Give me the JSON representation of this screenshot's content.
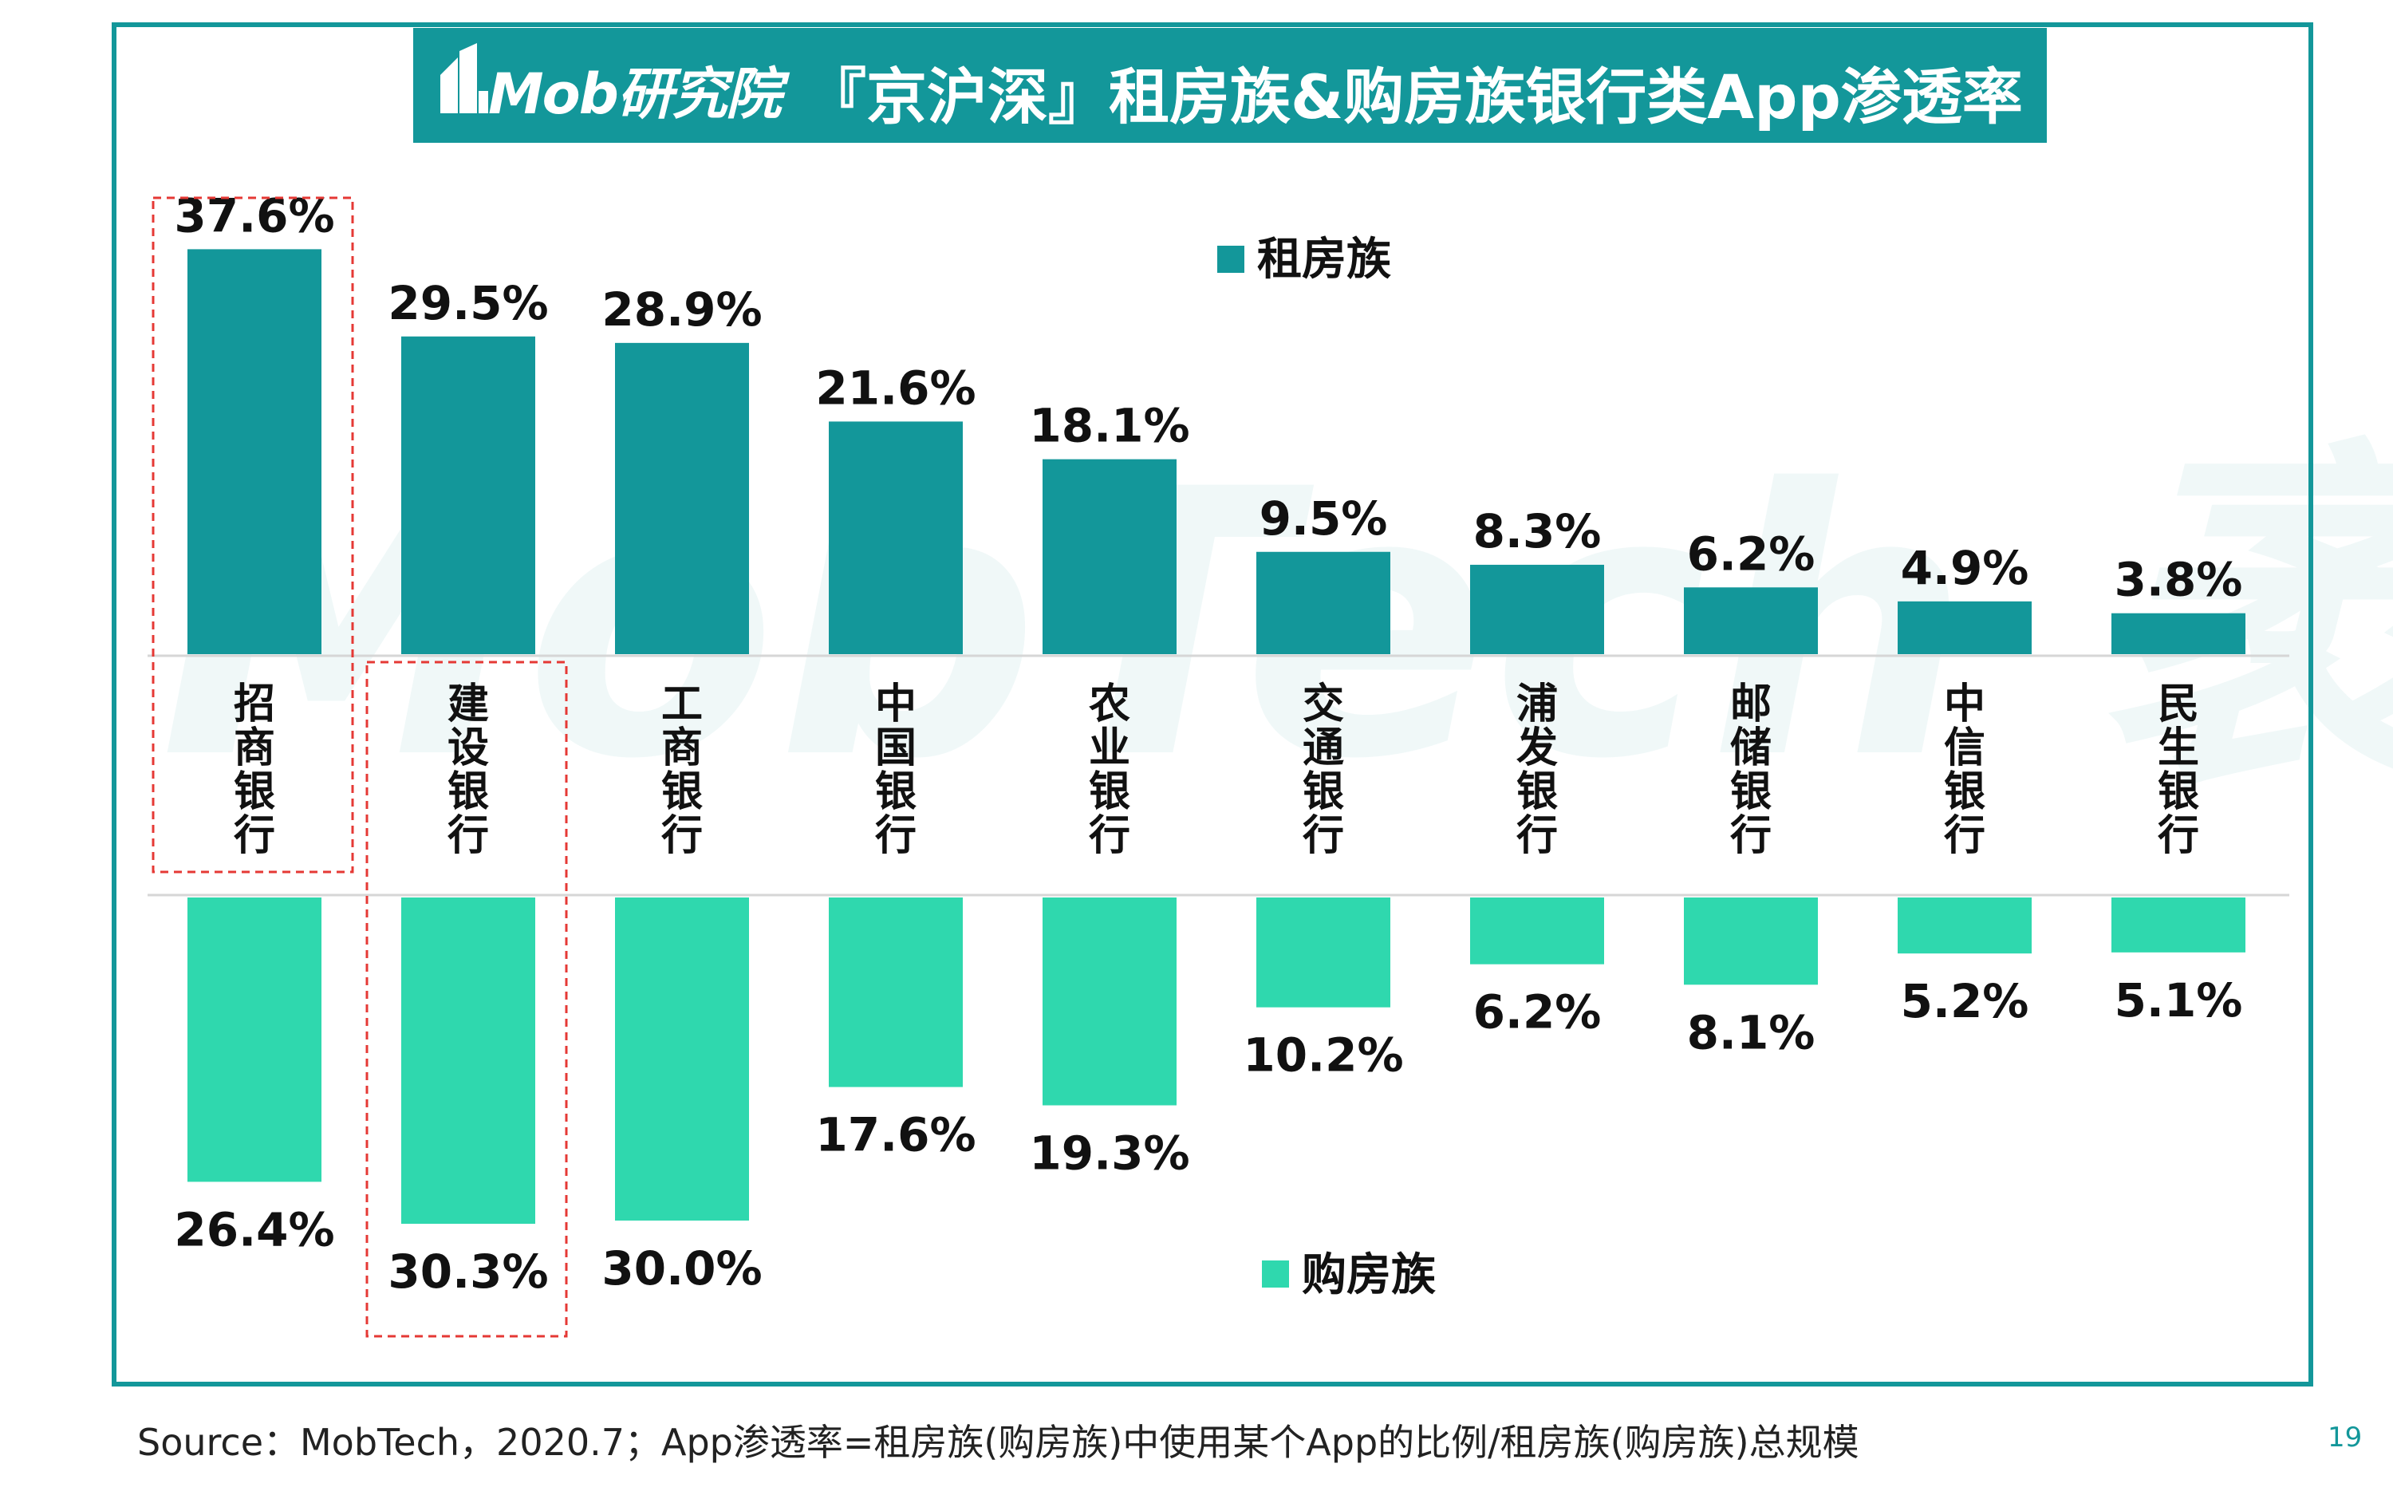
{
  "header": {
    "logo_text": "Mob研究院",
    "title": "『京沪深』租房族&购房族银行类App渗透率"
  },
  "watermark": "MobTech 袤博",
  "colors": {
    "rent": "#13979a",
    "buy": "#2fd8ae",
    "frame": "#13979a",
    "highlight": "#e53935"
  },
  "chart_data": {
    "type": "bar",
    "categories": [
      "招商银行",
      "建设银行",
      "工商银行",
      "中国银行",
      "农业银行",
      "交通银行",
      "浦发银行",
      "邮储银行",
      "中信银行",
      "民生银行"
    ],
    "series": [
      {
        "name": "租房族",
        "values": [
          37.6,
          29.5,
          28.9,
          21.6,
          18.1,
          9.5,
          8.3,
          6.2,
          4.9,
          3.8
        ],
        "labels": [
          "37.6%",
          "29.5%",
          "28.9%",
          "21.6%",
          "18.1%",
          "9.5%",
          "8.3%",
          "6.2%",
          "4.9%",
          "3.8%"
        ]
      },
      {
        "name": "购房族",
        "values": [
          26.4,
          30.3,
          30.0,
          17.6,
          19.3,
          10.2,
          6.2,
          8.1,
          5.2,
          5.1
        ],
        "labels": [
          "26.4%",
          "30.3%",
          "30.0%",
          "17.6%",
          "19.3%",
          "10.2%",
          "6.2%",
          "8.1%",
          "5.2%",
          "5.1%"
        ]
      }
    ],
    "unit": "%",
    "layout": "mirrored: 租房族 above category labels, 购房族 below",
    "legend": [
      "租房族 (top-center)",
      "购房族 (bottom-center)"
    ],
    "highlighted": [
      "招商银行 (租房族)",
      "建设银行 (购房族)"
    ],
    "grid": false
  },
  "footer": {
    "source": "Source：MobTech，2020.7；App渗透率=租房族(购房族)中使用某个App的比例/租房族(购房族)总规模",
    "page_number": "19"
  }
}
